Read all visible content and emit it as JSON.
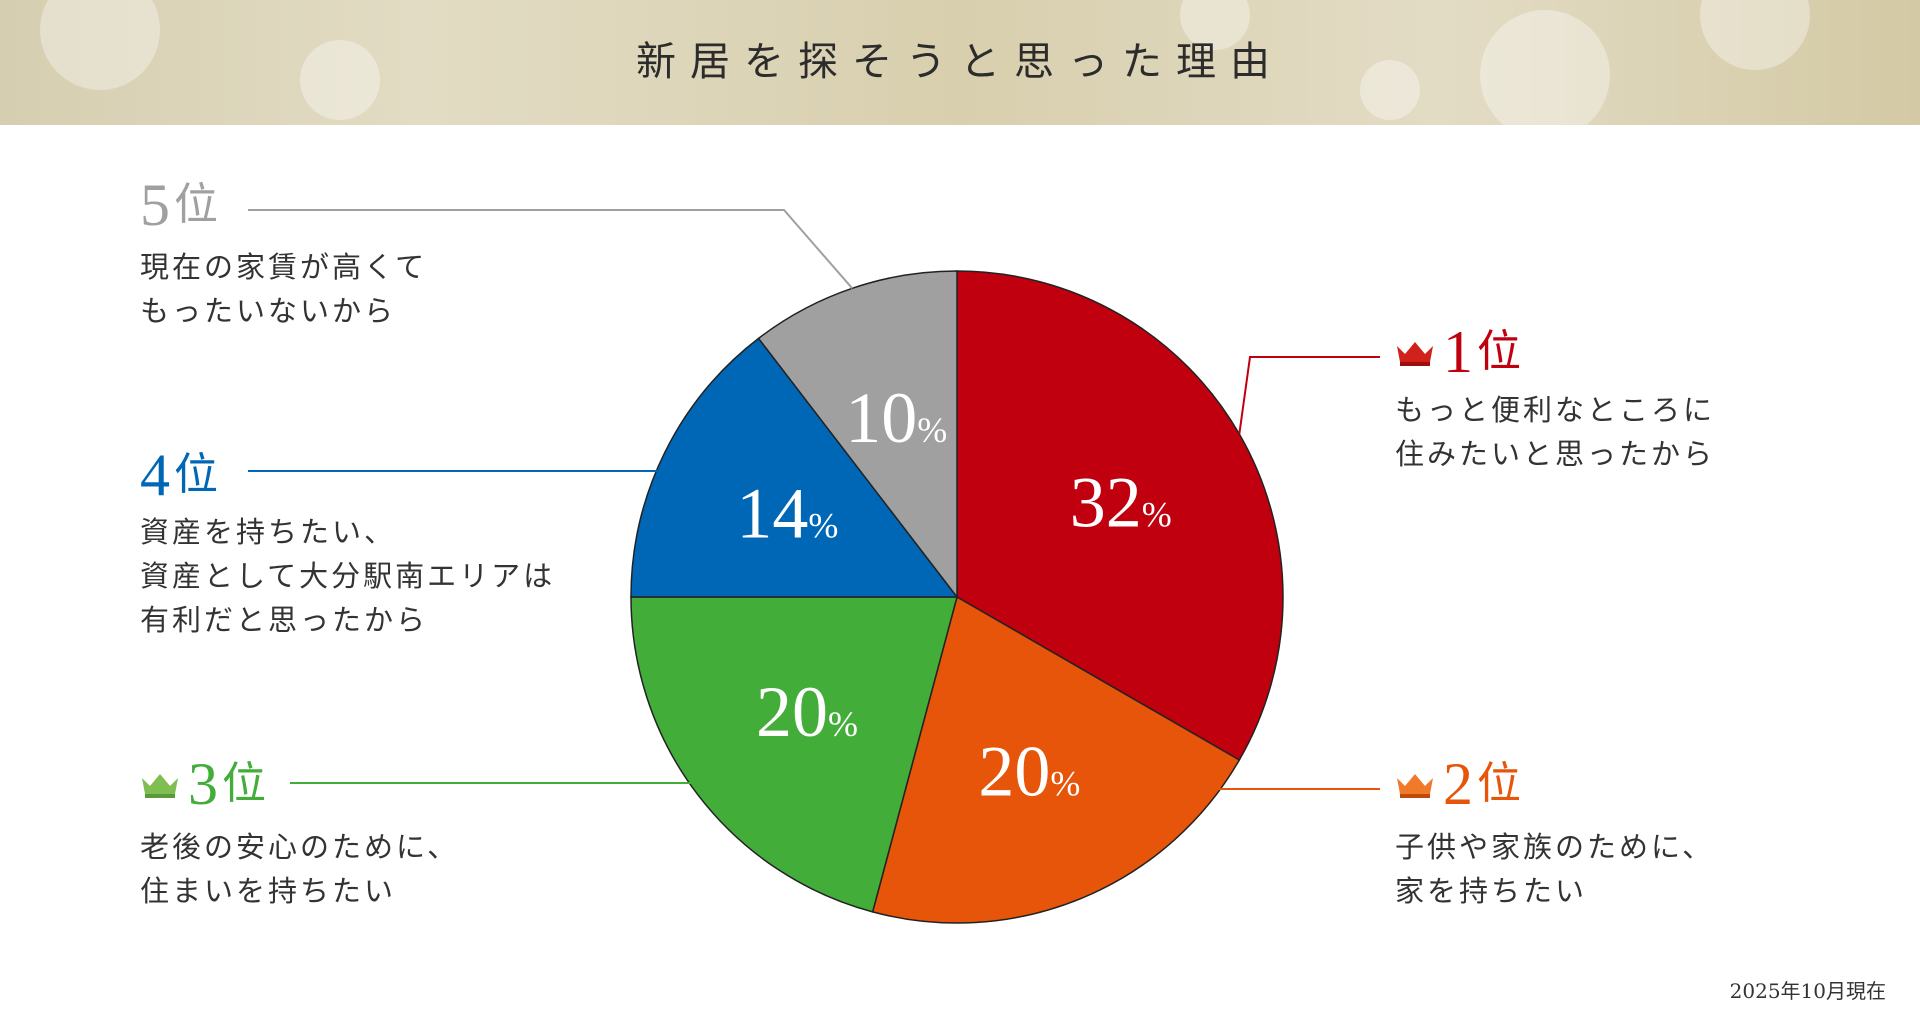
{
  "title": "新居を探そうと思った理由",
  "footnote": "2025年10月現在",
  "colors": {
    "rank1": "#c0000e",
    "rank2": "#e65509",
    "rank3": "#43ad3a",
    "rank4": "#0067b6",
    "rank5": "#a0a0a0"
  },
  "ranks": [
    {
      "num": "1",
      "pos": "位",
      "line1": "もっと便利なところに",
      "line2": "住みたいと思ったから",
      "line3": "",
      "crown": true
    },
    {
      "num": "2",
      "pos": "位",
      "line1": "子供や家族のために、",
      "line2": "家を持ちたい",
      "line3": "",
      "crown": true
    },
    {
      "num": "3",
      "pos": "位",
      "line1": "老後の安心のために、",
      "line2": "住まいを持ちたい",
      "line3": "",
      "crown": true
    },
    {
      "num": "4",
      "pos": "位",
      "line1": "資産を持ちたい、",
      "line2": "資産として大分駅南エリアは",
      "line3": "有利だと思ったから",
      "crown": false
    },
    {
      "num": "5",
      "pos": "位",
      "line1": "現在の家賃が高くて",
      "line2": "もったいないから",
      "line3": "",
      "crown": false
    }
  ],
  "chart_data": {
    "type": "pie",
    "unit": "%",
    "categories": [
      "1位",
      "2位",
      "3位",
      "4位",
      "5位"
    ],
    "values": [
      32,
      20,
      20,
      14,
      10
    ],
    "colors": [
      "#c0000e",
      "#e65509",
      "#43ad3a",
      "#0067b6",
      "#a0a0a0"
    ],
    "start_angle": "12 o'clock",
    "direction": "clockwise"
  }
}
